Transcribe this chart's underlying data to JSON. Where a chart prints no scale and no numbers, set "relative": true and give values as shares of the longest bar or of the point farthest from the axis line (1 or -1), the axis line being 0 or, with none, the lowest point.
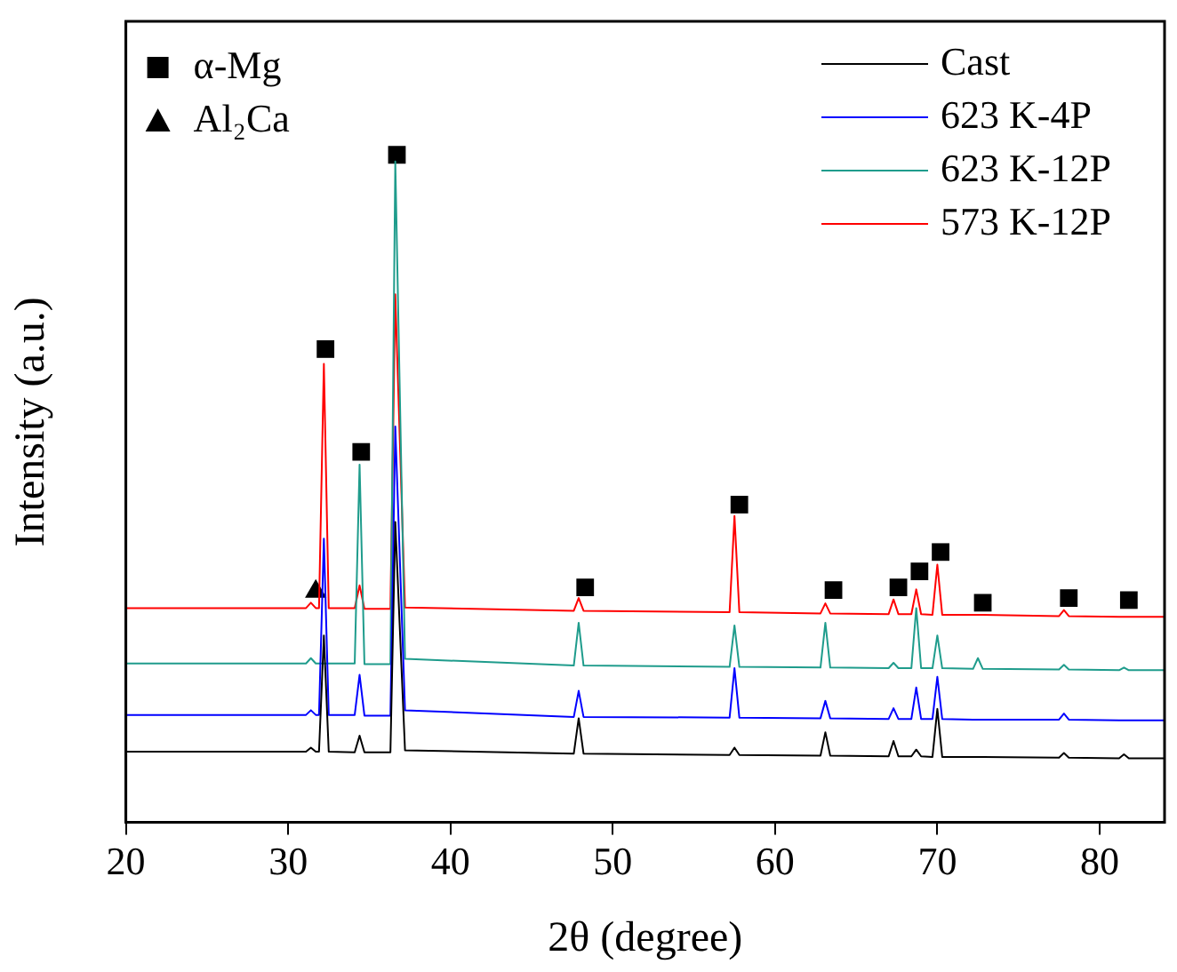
{
  "chart_data": {
    "type": "line",
    "relative": true,
    "xlabel": "2θ (degree)",
    "ylabel": "Intensity (a.u.)",
    "xlim": [
      20,
      84
    ],
    "xticks": [
      20,
      30,
      40,
      50,
      60,
      70,
      80
    ],
    "legend": "top",
    "marker": "none",
    "line_style": "solid",
    "x": [
      20,
      31.1,
      31.4,
      31.7,
      31.9,
      32.2,
      32.5,
      34.1,
      34.4,
      34.7,
      36.3,
      36.6,
      37.2,
      47.6,
      47.9,
      48.2,
      57.2,
      57.5,
      57.8,
      62.8,
      63.1,
      63.4,
      67.0,
      67.3,
      67.6,
      68.4,
      68.7,
      69.0,
      69.7,
      70.0,
      70.3,
      72.2,
      72.5,
      72.8,
      77.5,
      77.8,
      78.1,
      81.2,
      81.5,
      81.8,
      84
    ],
    "series": [
      {
        "name": "Cast",
        "color": "#000000",
        "values": [
          0.106,
          0.106,
          0.112,
          0.106,
          0.106,
          0.28,
          0.106,
          0.105,
          0.13,
          0.105,
          0.105,
          0.45,
          0.108,
          0.103,
          0.156,
          0.103,
          0.101,
          0.112,
          0.101,
          0.1,
          0.135,
          0.1,
          0.099,
          0.122,
          0.099,
          0.099,
          0.109,
          0.099,
          0.098,
          0.17,
          0.098,
          0.098,
          0.098,
          0.098,
          0.097,
          0.104,
          0.097,
          0.096,
          0.102,
          0.096,
          0.096
        ]
      },
      {
        "name": "623 K-4P",
        "color": "#0000ff",
        "values": [
          0.161,
          0.161,
          0.168,
          0.161,
          0.161,
          0.425,
          0.161,
          0.161,
          0.221,
          0.16,
          0.16,
          0.593,
          0.168,
          0.158,
          0.197,
          0.158,
          0.157,
          0.231,
          0.157,
          0.156,
          0.182,
          0.156,
          0.155,
          0.171,
          0.155,
          0.155,
          0.202,
          0.155,
          0.155,
          0.218,
          0.155,
          0.154,
          0.154,
          0.154,
          0.154,
          0.163,
          0.154,
          0.153,
          0.153,
          0.153,
          0.153
        ]
      },
      {
        "name": "623 K-12P",
        "color": "#1f9c8c",
        "values": [
          0.238,
          0.238,
          0.246,
          0.238,
          0.238,
          null,
          0.238,
          0.238,
          0.536,
          0.237,
          0.237,
          0.99,
          0.245,
          0.235,
          0.299,
          0.235,
          0.233,
          0.295,
          0.233,
          0.232,
          0.299,
          0.232,
          0.231,
          0.239,
          0.231,
          0.231,
          0.321,
          0.231,
          0.231,
          0.28,
          0.231,
          0.23,
          0.246,
          0.23,
          0.229,
          0.236,
          0.229,
          0.228,
          0.232,
          0.228,
          0.228
        ]
      },
      {
        "name": "573 K-12P",
        "color": "#ff0000",
        "values": [
          0.321,
          0.321,
          0.329,
          0.321,
          0.321,
          0.687,
          0.321,
          0.321,
          0.355,
          0.32,
          0.32,
          0.791,
          0.322,
          0.317,
          0.336,
          0.317,
          0.315,
          0.459,
          0.315,
          0.313,
          0.328,
          0.313,
          0.312,
          0.334,
          0.312,
          0.312,
          0.349,
          0.312,
          0.311,
          0.386,
          0.311,
          0.311,
          0.311,
          0.311,
          0.309,
          0.318,
          0.309,
          0.308,
          0.308,
          0.308,
          0.308
        ]
      },
      {
        "name": "α-Mg",
        "type": "scatter",
        "marker": "square",
        "color": "#000000",
        "x": [
          32.3,
          34.5,
          36.7,
          48.3,
          57.8,
          63.6,
          67.6,
          68.9,
          70.2,
          72.8,
          78.1,
          81.8
        ],
        "values": [
          0.709,
          0.555,
          1.0,
          0.352,
          0.476,
          0.348,
          0.352,
          0.376,
          0.405,
          0.329,
          0.336,
          0.333
        ]
      },
      {
        "name": "Al₂Ca",
        "type": "scatter",
        "marker": "triangle",
        "color": "#000000",
        "x": [
          31.7
        ],
        "values": [
          0.346
        ]
      }
    ]
  }
}
